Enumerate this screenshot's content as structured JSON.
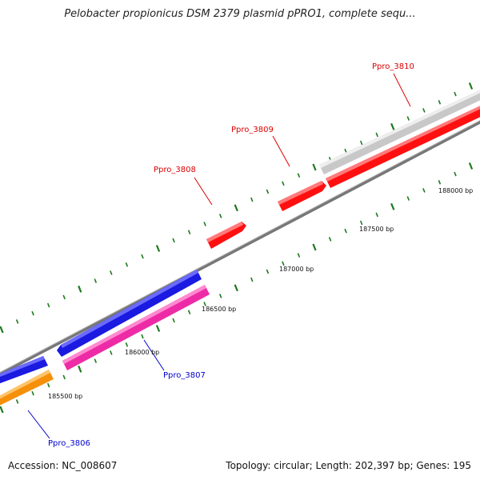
{
  "title": "Pelobacter propionicus DSM 2379 plasmid pPRO1, complete sequ...",
  "footer": {
    "accession": "Accession: NC_008607",
    "summary": "Topology: circular; Length: 202,397 bp; Genes: 195"
  },
  "position_labels": [
    "185500 bp",
    "186000 bp",
    "186500 bp",
    "187000 bp",
    "187500 bp",
    "188000 bp"
  ],
  "genes": [
    {
      "name": "Ppro_3806",
      "label": "Ppro_3806",
      "color": "#f5900a",
      "strand": "reverse",
      "label_color": "#0000cc"
    },
    {
      "name": "blue-upper-1",
      "label": "",
      "color": "#1a1ae0",
      "strand": "forward"
    },
    {
      "name": "Ppro_3807",
      "label": "Ppro_3807",
      "color": "#ee2ba6",
      "strand": "reverse",
      "label_color": "#0000cc"
    },
    {
      "name": "blue-upper-2",
      "label": "",
      "color": "#1a1ae0",
      "strand": "forward"
    },
    {
      "name": "Ppro_3808",
      "label": "Ppro_3808",
      "color": "#ff1010",
      "strand": "forward",
      "label_color": "#dd0000"
    },
    {
      "name": "Ppro_3809",
      "label": "Ppro_3809",
      "color": "#ff1010",
      "strand": "forward",
      "label_color": "#dd0000"
    },
    {
      "name": "red-long",
      "label": "",
      "color": "#ff1010",
      "strand": "forward"
    },
    {
      "name": "Ppro_3810",
      "label": "Ppro_3810",
      "color": "#c8c8c8",
      "strand": "forward",
      "label_color": "#dd0000"
    }
  ],
  "colors": {
    "backbone": "#777777",
    "tick": "#1e7a1e"
  }
}
